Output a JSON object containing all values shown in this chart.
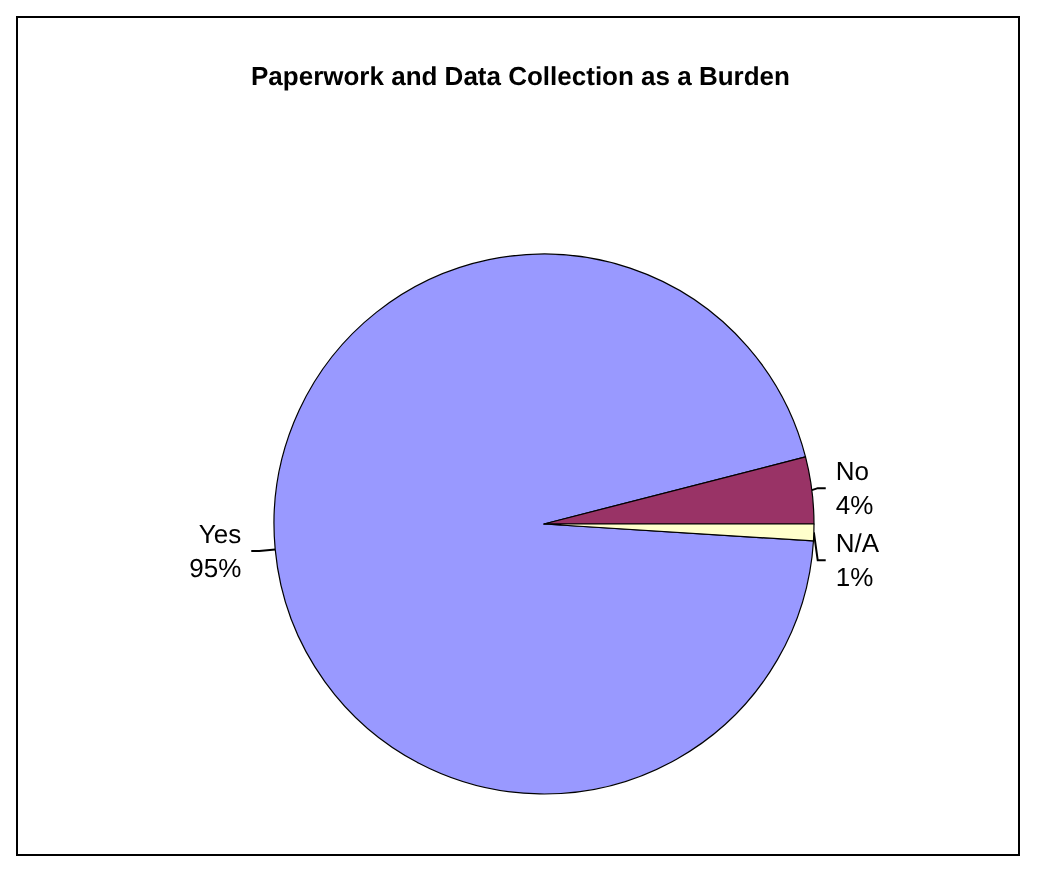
{
  "chart_data": {
    "type": "pie",
    "title": "Paperwork and Data Collection as a Burden",
    "categories": [
      "Yes",
      "No",
      "N/A"
    ],
    "values": [
      95,
      4,
      1
    ],
    "value_labels": [
      "95%",
      "4%",
      "1%"
    ],
    "colors": [
      "#9999ff",
      "#993366",
      "#ffffcc"
    ]
  }
}
